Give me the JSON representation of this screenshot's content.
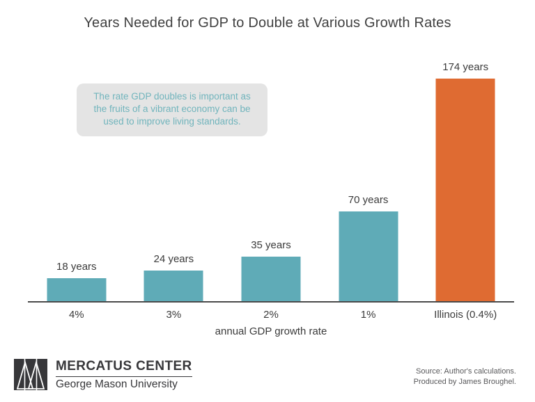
{
  "title": "Years Needed for GDP to Double at Various Growth Rates",
  "annotation": {
    "text": "The rate GDP doubles is important as the fruits of a vibrant economy can be used to improve living standards."
  },
  "chart_data": {
    "type": "bar",
    "title": "Years Needed for GDP to Double at Various Growth Rates",
    "categories": [
      "4%",
      "3%",
      "2%",
      "1%",
      "Illinois (0.4%)"
    ],
    "values": [
      18,
      24,
      35,
      70,
      174
    ],
    "value_labels": [
      "18 years",
      "24 years",
      "35 years",
      "70 years",
      "174 years"
    ],
    "bar_colors": [
      "#5fabb7",
      "#5fabb7",
      "#5fabb7",
      "#5fabb7",
      "#df6b32"
    ],
    "xlabel": "annual GDP growth rate",
    "ylabel": "",
    "ylim": [
      0,
      174
    ],
    "grid": false,
    "legend": "none",
    "annotation": "The rate GDP doubles is important as the fruits of a vibrant economy can be used to improve living standards."
  },
  "colors": {
    "teal": "#5fabb7",
    "orange": "#df6b32",
    "annotation_bg": "#e4e4e4",
    "annotation_text": "#70b4bc",
    "axis": "#4a4a4a"
  },
  "footer": {
    "logo_title": "MERCATUS CENTER",
    "logo_subtitle": "George Mason University",
    "source_line1": "Source: Author's calculations.",
    "source_line2": "Produced by James Broughel."
  }
}
